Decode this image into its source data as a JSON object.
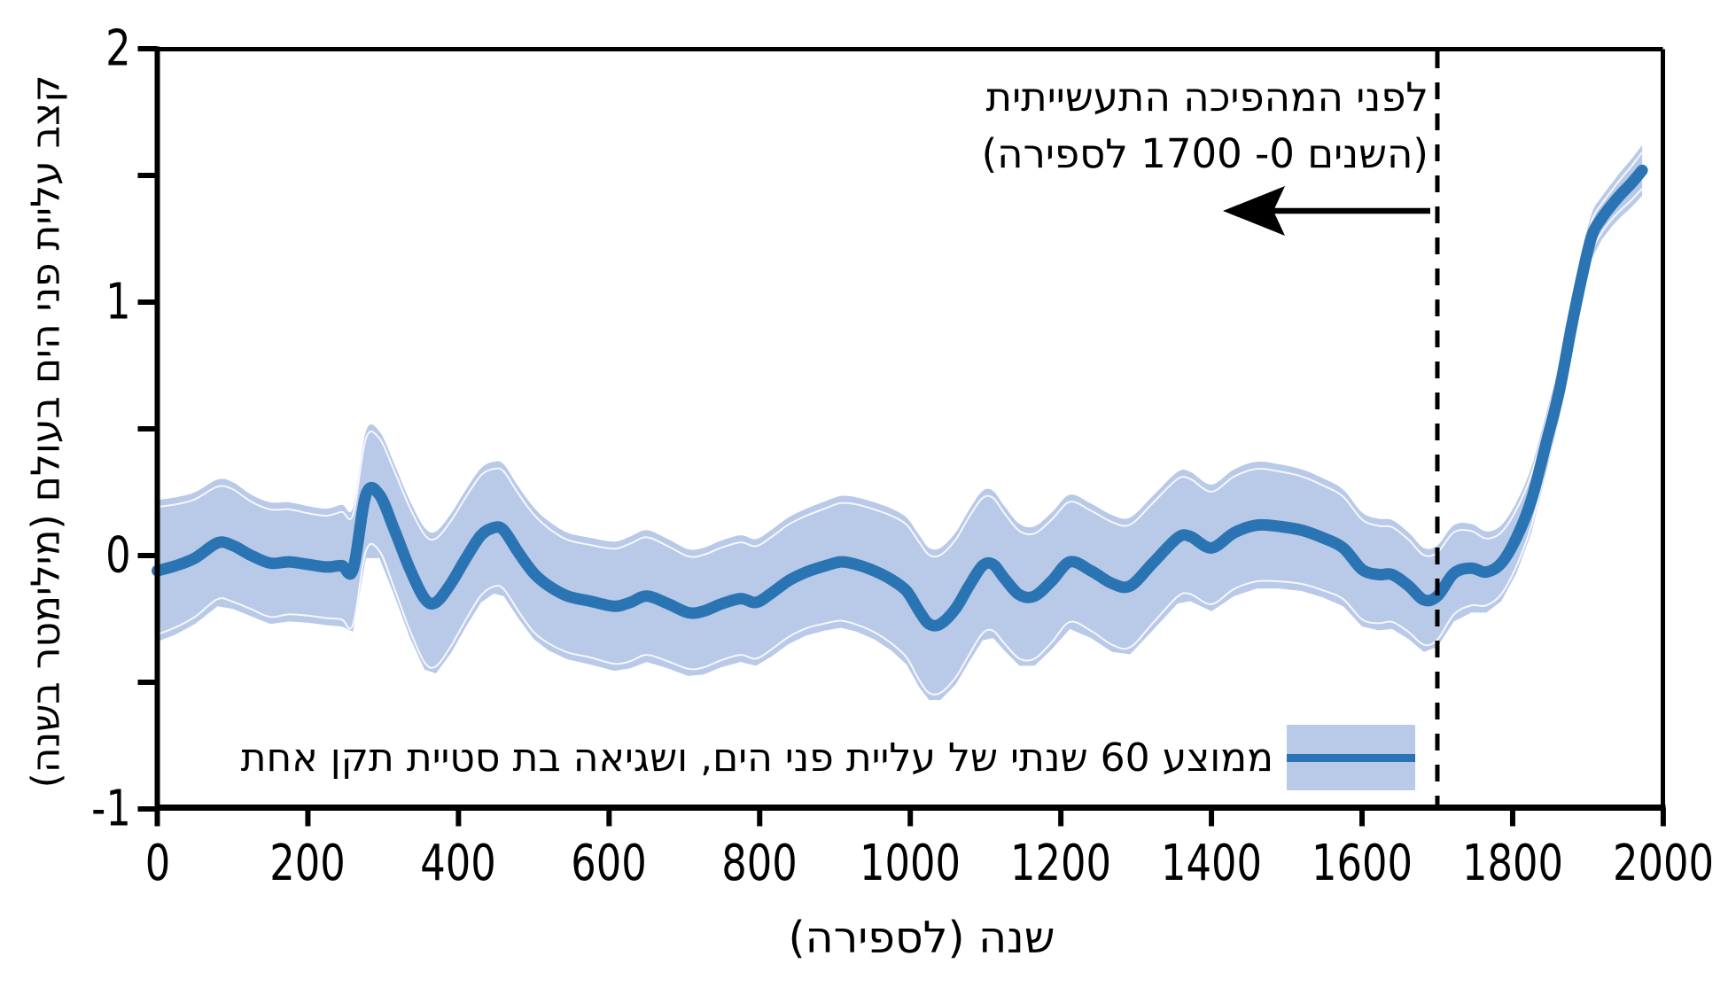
{
  "colors": {
    "line": "#2b74b3",
    "band": "#b9c9e8",
    "band_hairline": "#ffffff",
    "axis": "#000000",
    "text": "#000000"
  },
  "axes": {
    "x": {
      "label": "שנה (לספירה)",
      "tick_labels": [
        "0",
        "200",
        "400",
        "600",
        "800",
        "1000",
        "1200",
        "1400",
        "1600",
        "1800",
        "2000"
      ],
      "tick_years": [
        0,
        200,
        400,
        600,
        800,
        1000,
        1200,
        1400,
        1600,
        1800,
        2000
      ],
      "range": [
        0,
        2000
      ]
    },
    "y": {
      "label": "קצב עליית פני הים בעולם (מילימטר בשנה)",
      "tick_values": [
        2,
        1.5,
        1,
        0.5,
        0,
        -0.5,
        -1
      ],
      "labeled_ticks": [
        {
          "value": 2,
          "label": "2"
        },
        {
          "value": 1,
          "label": "1"
        },
        {
          "value": 0,
          "label": "0"
        },
        {
          "value": -1,
          "label": "-1"
        }
      ],
      "range": [
        -1,
        2
      ]
    }
  },
  "annotation": {
    "line1": "לפני המהפיכה התעשייתית",
    "line2": "(השנים 0- 1700 לספירה)",
    "threshold_year": 1700
  },
  "legend": {
    "label": "ממוצע 60 שנתי של עליית פני הים, ושגיאה בת סטיית תקן אחת"
  },
  "chart_data": {
    "type": "line",
    "title": "",
    "xlabel": "שנה (לספירה)",
    "ylabel": "קצב עליית פני הים בעולם (מילימטר בשנה)",
    "xlim": [
      0,
      2000
    ],
    "ylim": [
      -1,
      2
    ],
    "grid": false,
    "legend_position": "bottom",
    "vline_x": 1700,
    "series": [
      {
        "name": "ממוצע 60 שנתי של עליית פני הים, ושגיאה בת סטיית תקן אחת",
        "x": [
          0,
          25,
          50,
          80,
          100,
          125,
          150,
          175,
          200,
          225,
          245,
          260,
          277,
          295,
          315,
          335,
          355,
          370,
          390,
          410,
          430,
          447,
          460,
          480,
          500,
          520,
          545,
          575,
          607,
          628,
          650,
          678,
          705,
          725,
          750,
          775,
          795,
          815,
          838,
          862,
          888,
          908,
          928,
          952,
          975,
          995,
          1012,
          1025,
          1040,
          1060,
          1078,
          1096,
          1110,
          1125,
          1145,
          1165,
          1188,
          1212,
          1240,
          1268,
          1292,
          1322,
          1355,
          1372,
          1400,
          1430,
          1460,
          1490,
          1520,
          1548,
          1575,
          1600,
          1622,
          1640,
          1662,
          1682,
          1700,
          1722,
          1745,
          1765,
          1785,
          1805,
          1825,
          1845,
          1862,
          1878,
          1892,
          1905,
          1918,
          1932,
          1945,
          1958,
          1972
        ],
        "y": [
          -0.06,
          -0.04,
          -0.01,
          0.05,
          0.04,
          0,
          -0.03,
          -0.025,
          -0.035,
          -0.045,
          -0.04,
          -0.055,
          0.24,
          0.24,
          0.1,
          -0.05,
          -0.17,
          -0.185,
          -0.11,
          -0.01,
          0.08,
          0.11,
          0.1,
          0.01,
          -0.07,
          -0.12,
          -0.16,
          -0.18,
          -0.2,
          -0.185,
          -0.16,
          -0.19,
          -0.225,
          -0.22,
          -0.19,
          -0.17,
          -0.185,
          -0.15,
          -0.1,
          -0.065,
          -0.04,
          -0.025,
          -0.035,
          -0.06,
          -0.095,
          -0.14,
          -0.22,
          -0.27,
          -0.27,
          -0.21,
          -0.12,
          -0.04,
          -0.035,
          -0.09,
          -0.155,
          -0.16,
          -0.1,
          -0.025,
          -0.06,
          -0.11,
          -0.12,
          -0.03,
          0.07,
          0.075,
          0.03,
          0.09,
          0.12,
          0.115,
          0.1,
          0.07,
          0.03,
          -0.055,
          -0.075,
          -0.075,
          -0.12,
          -0.175,
          -0.16,
          -0.07,
          -0.05,
          -0.065,
          -0.03,
          0.07,
          0.22,
          0.45,
          0.65,
          0.9,
          1.1,
          1.26,
          1.33,
          1.385,
          1.43,
          1.47,
          1.52
        ],
        "band_halfwidth": [
          0.28,
          0.27,
          0.26,
          0.25,
          0.25,
          0.24,
          0.24,
          0.235,
          0.23,
          0.23,
          0.24,
          0.245,
          0.25,
          0.25,
          0.26,
          0.27,
          0.28,
          0.28,
          0.275,
          0.27,
          0.265,
          0.26,
          0.26,
          0.26,
          0.26,
          0.255,
          0.25,
          0.25,
          0.255,
          0.26,
          0.26,
          0.255,
          0.25,
          0.25,
          0.25,
          0.25,
          0.25,
          0.25,
          0.25,
          0.25,
          0.255,
          0.26,
          0.265,
          0.27,
          0.28,
          0.29,
          0.3,
          0.3,
          0.3,
          0.3,
          0.3,
          0.295,
          0.29,
          0.285,
          0.28,
          0.275,
          0.27,
          0.265,
          0.265,
          0.27,
          0.27,
          0.265,
          0.26,
          0.255,
          0.25,
          0.25,
          0.25,
          0.245,
          0.24,
          0.235,
          0.23,
          0.225,
          0.22,
          0.215,
          0.21,
          0.205,
          0.2,
          0.19,
          0.175,
          0.16,
          0.15,
          0.14,
          0.13,
          0.115,
          0.105,
          0.1,
          0.095,
          0.09,
          0.085,
          0.085,
          0.09,
          0.095,
          0.1
        ]
      }
    ]
  }
}
